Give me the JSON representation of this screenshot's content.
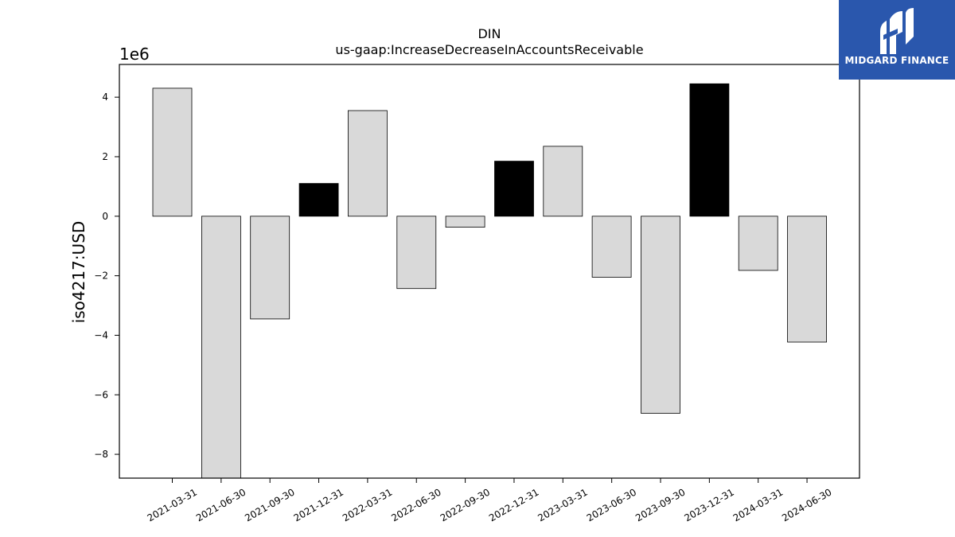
{
  "chart_data": {
    "type": "bar",
    "title": "DIN",
    "subtitle": "us-gaap:IncreaseDecreaseInAccountsReceivable",
    "ylabel": "iso4217:USD",
    "xlabel": "",
    "offset_label": "1e6",
    "scale": 1000000,
    "categories": [
      "2021-03-31",
      "2021-06-30",
      "2021-09-30",
      "2021-12-31",
      "2022-03-31",
      "2022-06-30",
      "2022-09-30",
      "2022-12-31",
      "2023-03-31",
      "2023-06-30",
      "2023-09-30",
      "2023-12-31",
      "2024-03-31",
      "2024-06-30"
    ],
    "values": [
      4300000,
      -8800000,
      -3450000,
      1100000,
      3550000,
      -2430000,
      -370000,
      1850000,
      2350000,
      -2050000,
      -6620000,
      4450000,
      -1820000,
      -4230000
    ],
    "highlighted": [
      false,
      false,
      false,
      true,
      false,
      false,
      false,
      true,
      false,
      false,
      false,
      true,
      false,
      false
    ],
    "colors": {
      "normal": "#d9d9d9",
      "highlight": "#000000",
      "edge": "#000000"
    },
    "ylim": [
      -8800000,
      5100000
    ],
    "yticks": [
      -8,
      -6,
      -4,
      -2,
      0,
      2,
      4
    ],
    "ytick_labels": [
      "−8",
      "−6",
      "−4",
      "−2",
      "0",
      "2",
      "4"
    ],
    "grid": false,
    "legend": "none"
  },
  "logo": {
    "text": "MIDGARD FINANCE",
    "background": "#2a57ad",
    "icon": "midgard-m-icon"
  }
}
